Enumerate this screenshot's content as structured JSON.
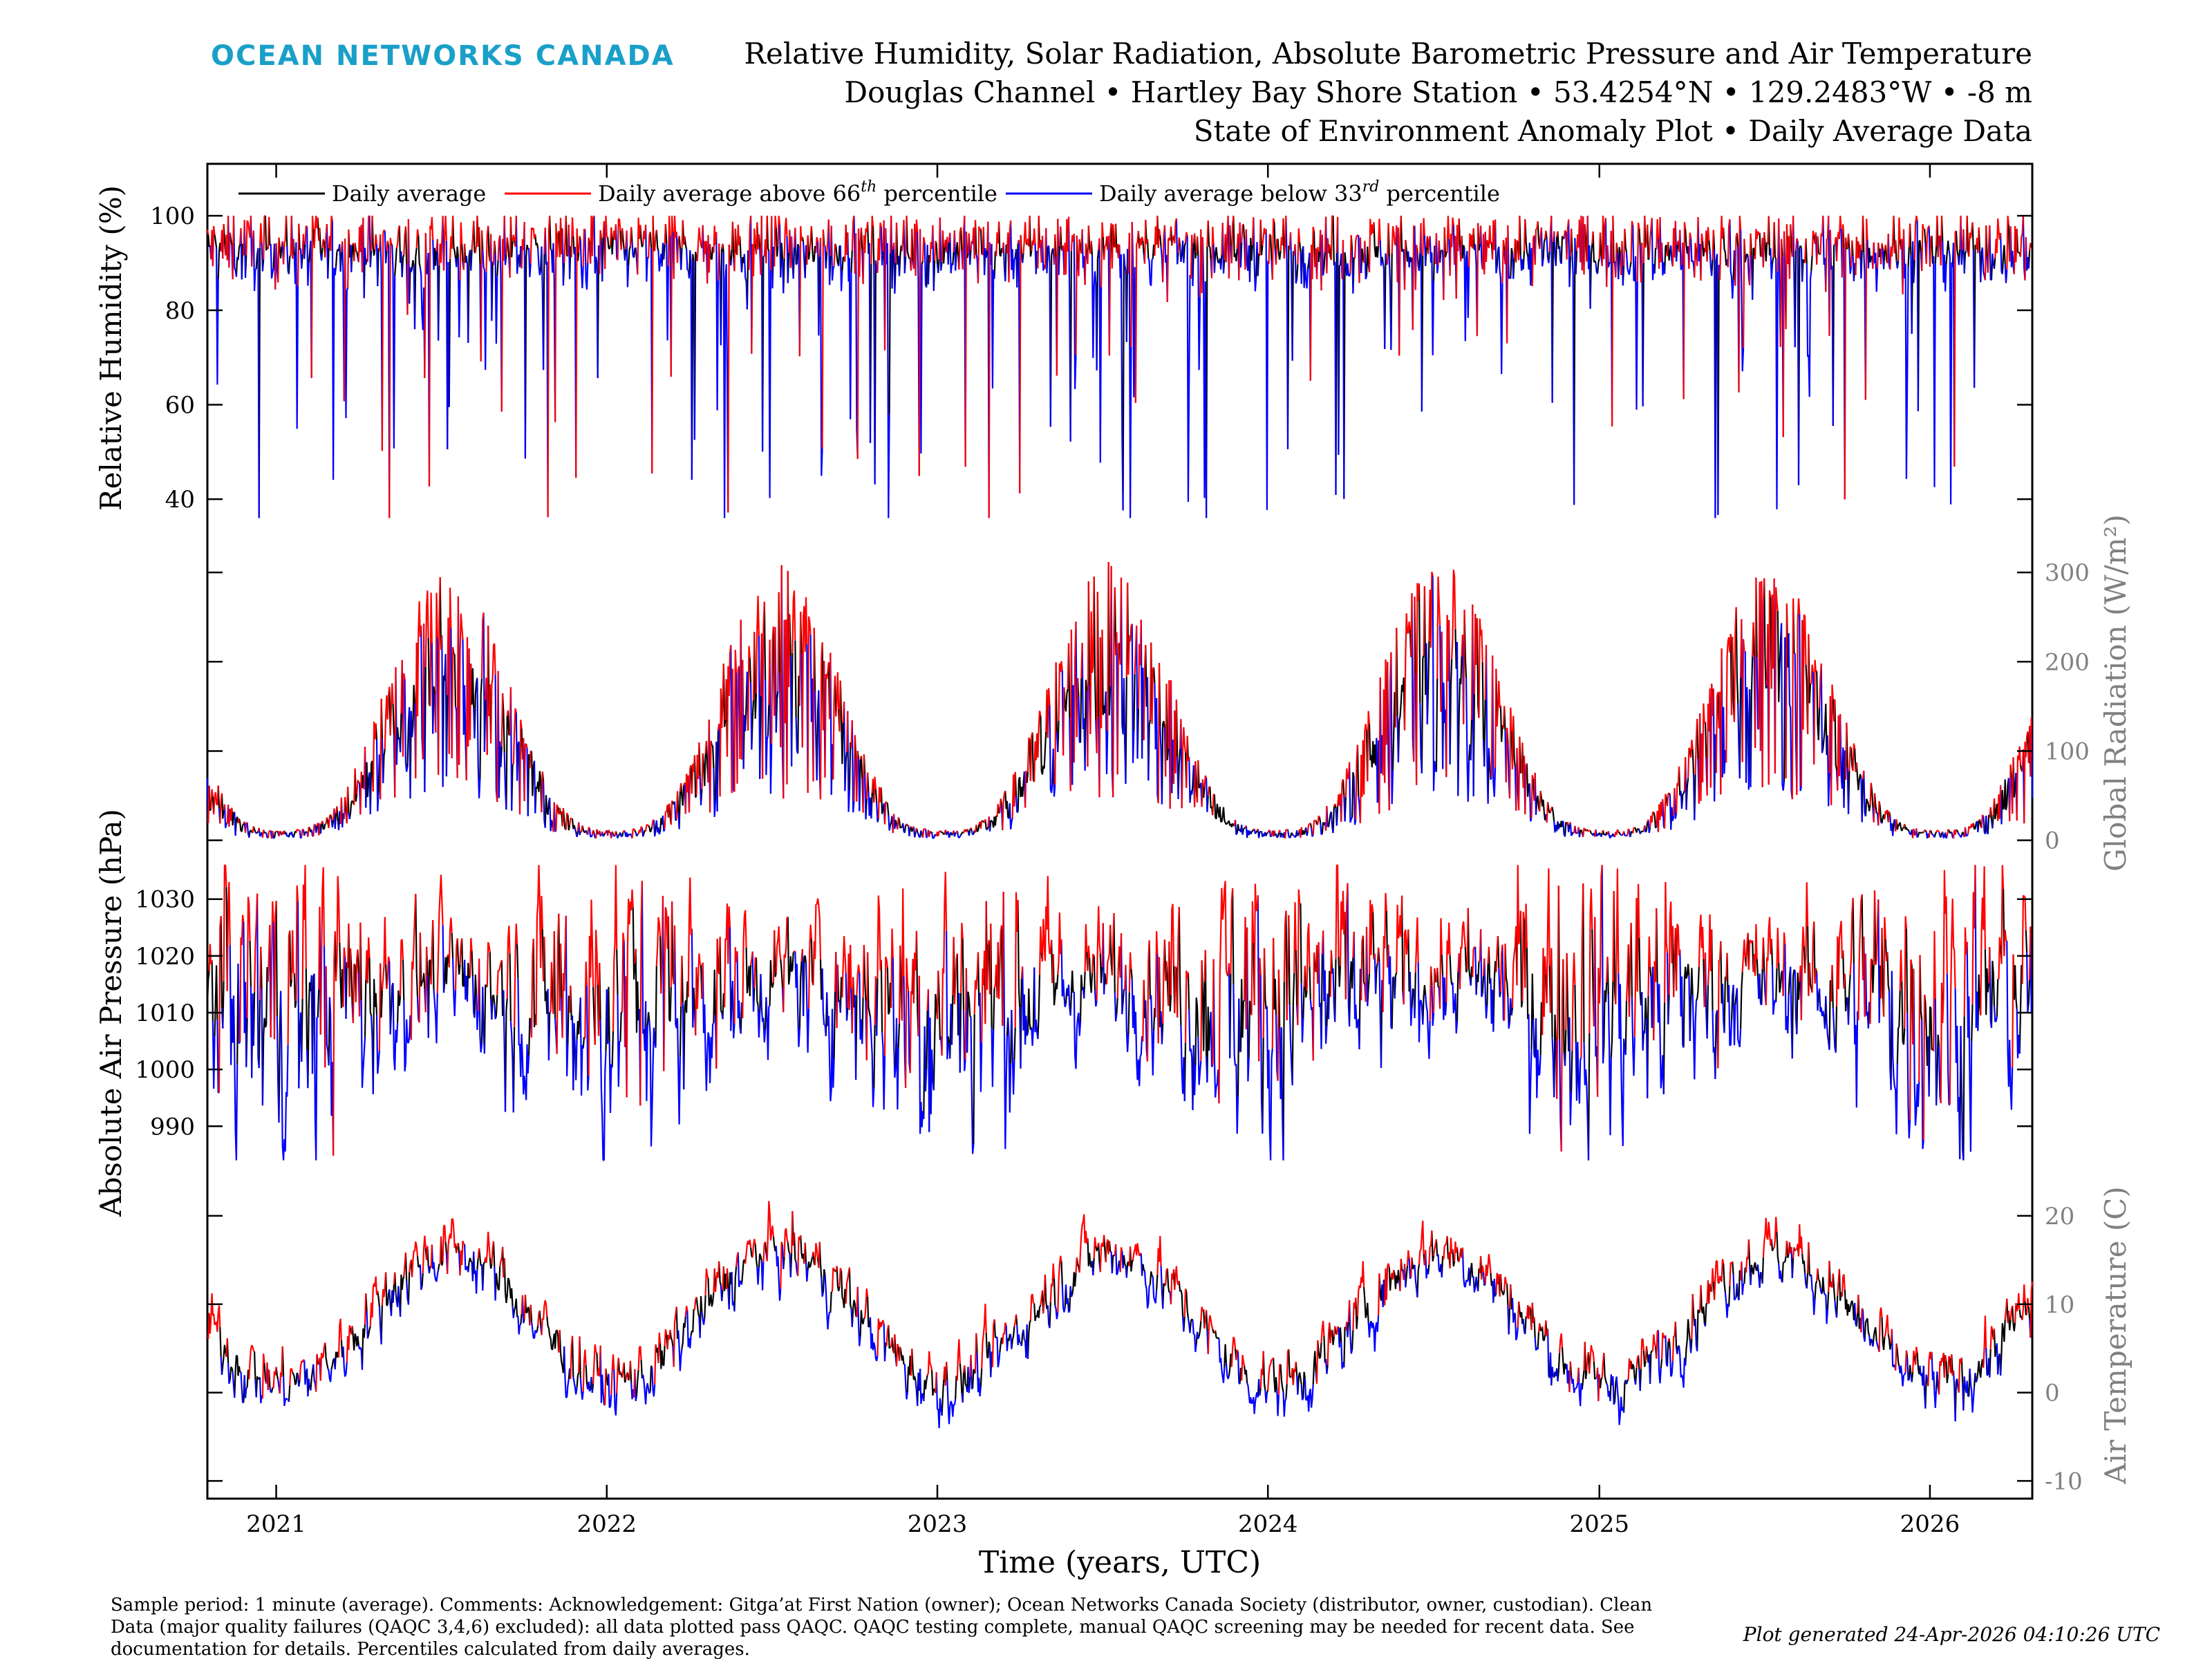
{
  "header": {
    "logo": "OCEAN NETWORKS CANADA",
    "title_lines": [
      "Relative Humidity, Solar Radiation, Absolute Barometric Pressure and Air Temperature",
      "Douglas Channel • Hartley Bay Shore Station • 53.4254°N • 129.2483°W • -8 m",
      "State of Environment Anomaly Plot • Daily Average Data"
    ]
  },
  "legend": {
    "daily": "Daily average",
    "above": "Daily average above 66",
    "above_sup": "th",
    "below": "Daily average below 33",
    "below_sup": "rd",
    "percentile": " percentile"
  },
  "colors": {
    "daily": "#000000",
    "above": "#ff0000",
    "below": "#0000ff",
    "logo": "#1aa0c8",
    "secondary_axis": "#808080"
  },
  "footer": {
    "notes": [
      "Sample period: 1 minute (average). Comments: Acknowledgement: Gitga’at First Nation (owner); Ocean Networks Canada Society (distributor, owner, custodian). Clean",
      "Data (major quality failures (QAQC 3,4,6) excluded): all data plotted pass QAQC. QAQC testing complete, manual QAQC screening may be needed for recent data. See",
      "documentation for details. Percentiles calculated from daily averages."
    ],
    "generated": "Plot generated 24-Apr-2026 04:10:26 UTC"
  },
  "chart_data": {
    "type": "line",
    "xlabel": "Time (years, UTC)",
    "x_range": [
      "2020-10-17",
      "2026-04-24"
    ],
    "x_ticks": [
      "2021",
      "2022",
      "2023",
      "2024",
      "2025",
      "2026"
    ],
    "series_names": [
      "Daily average",
      "Daily average above 66th percentile",
      "Daily average below 33rd percentile"
    ],
    "panels": [
      {
        "name": "humidity",
        "ylabel": "Relative Humidity (%)",
        "axis_side": "left",
        "ylim": [
          33,
          111
        ],
        "yticks": [
          40,
          60,
          80,
          100
        ],
        "seasonal_baseline": [
          92,
          92
        ],
        "amplitude": 0,
        "noise": 7,
        "cap": 100
      },
      {
        "name": "radiation",
        "ylabel": "Global Radiation (W/m²)",
        "axis_side": "right",
        "ylim": [
          -15,
          345
        ],
        "yticks": [
          0,
          100,
          200,
          300
        ],
        "seasonal_peak_month": 6.2,
        "summer_mean": 200,
        "winter_mean": 8
      },
      {
        "name": "pressure",
        "ylabel": "Absolute Air Pressure (hPa)",
        "axis_side": "left",
        "ylim": [
          982,
          1038
        ],
        "yticks": [
          990,
          1000,
          1010,
          1020,
          1030
        ],
        "mean": 1014,
        "noise": 8
      },
      {
        "name": "temperature",
        "ylabel": "Air Temperature (C)",
        "axis_side": "right",
        "ylim": [
          -12,
          25
        ],
        "yticks": [
          -10,
          0,
          10,
          20
        ],
        "summer_mean": 16,
        "winter_mean": 1.5
      }
    ]
  }
}
